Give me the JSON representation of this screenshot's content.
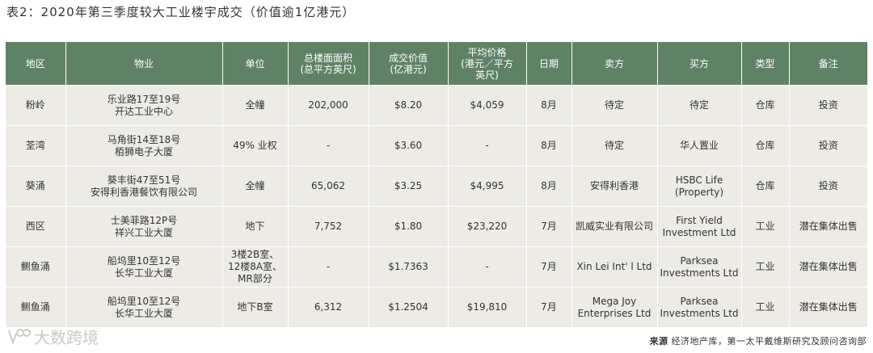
{
  "title": "表2：2020年第三季度较大工业楼宇成交（价值逾1亿港元）",
  "columns": [
    [
      "地区"
    ],
    [
      "物业"
    ],
    [
      "单位"
    ],
    [
      "总楼面面积",
      "(总平方英尺)"
    ],
    [
      "成交价值",
      "(亿港元)"
    ],
    [
      "平均价格",
      "(港元／平方",
      "英尺)"
    ],
    [
      "日期"
    ],
    [
      "卖方"
    ],
    [
      "买方"
    ],
    [
      "类型"
    ],
    [
      "备注"
    ]
  ],
  "rows": [
    [
      [
        "粉岭"
      ],
      [
        "乐业路17至19号",
        "开达工业中心"
      ],
      [
        "全幢"
      ],
      [
        "202,000"
      ],
      [
        "$8.20"
      ],
      [
        "$4,059"
      ],
      [
        "8月"
      ],
      [
        "待定"
      ],
      [
        "待定"
      ],
      [
        "仓库"
      ],
      [
        "投资"
      ]
    ],
    [
      [
        "荃湾"
      ],
      [
        "马角街14至18号",
        "栢狮电子大厦"
      ],
      [
        "49% 业权"
      ],
      [
        "-"
      ],
      [
        "$3.60"
      ],
      [
        "-"
      ],
      [
        "8月"
      ],
      [
        "待定"
      ],
      [
        "华人置业"
      ],
      [
        "仓库"
      ],
      [
        "投资"
      ]
    ],
    [
      [
        "葵涌"
      ],
      [
        "葵丰街47至51号",
        "安得利香港餐饮有限公司"
      ],
      [
        "全幢"
      ],
      [
        "65,062"
      ],
      [
        "$3.25"
      ],
      [
        "$4,995"
      ],
      [
        "8月"
      ],
      [
        "安得利香港"
      ],
      [
        "HSBC Life",
        "(Property)"
      ],
      [
        "仓库"
      ],
      [
        "投资"
      ]
    ],
    [
      [
        "西区"
      ],
      [
        "士美菲路12P号",
        "祥兴工业大厦"
      ],
      [
        "地下"
      ],
      [
        "7,752"
      ],
      [
        "$1.80"
      ],
      [
        "$23,220"
      ],
      [
        "7月"
      ],
      [
        "凯威实业有限公司"
      ],
      [
        "First Yield",
        "Investment Ltd"
      ],
      [
        "工业"
      ],
      [
        "潜在集体出售"
      ]
    ],
    [
      [
        "鲗鱼涌"
      ],
      [
        "船坞里10至12号",
        "长华工业大厦"
      ],
      [
        "3楼2B室、",
        "12楼8A室、",
        "MR部分"
      ],
      [
        "-"
      ],
      [
        "$1.7363"
      ],
      [
        "-"
      ],
      [
        "7月"
      ],
      [
        "Xin Lei Int' l Ltd"
      ],
      [
        "Parksea",
        "Investments Ltd"
      ],
      [
        "工业"
      ],
      [
        "潜在集体出售"
      ]
    ],
    [
      [
        "鲗鱼涌"
      ],
      [
        "船坞里10至12号",
        "长华工业大厦"
      ],
      [
        "地下B室"
      ],
      [
        "6,312"
      ],
      [
        "$1.2504"
      ],
      [
        "$19,810"
      ],
      [
        "7月"
      ],
      [
        "Mega Joy",
        "Enterprises Ltd"
      ],
      [
        "Parksea",
        "Investments Ltd"
      ],
      [
        "工业"
      ],
      [
        "潜在集体出售"
      ]
    ]
  ],
  "watermark": "大数跨境",
  "source": {
    "label": "来源",
    "text": "经济地产库，第一太平戴维斯研究及顾问咨询部"
  },
  "colors": {
    "header_bg": "#5f8267",
    "cell_bg": "#ecebe6"
  }
}
